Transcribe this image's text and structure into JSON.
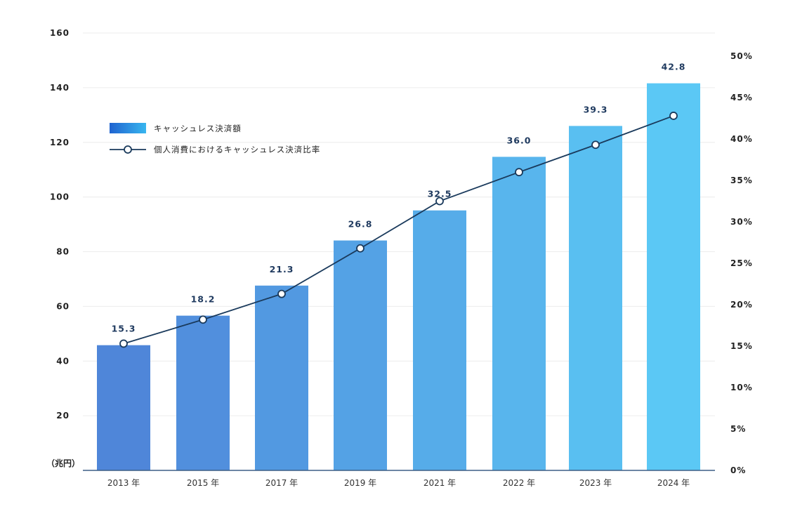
{
  "chart_data": {
    "type": "bar",
    "title": "",
    "categories": [
      "2013 年",
      "2015 年",
      "2017 年",
      "2019 年",
      "2021 年",
      "2022 年",
      "2023 年",
      "2024 年"
    ],
    "series": [
      {
        "name": "キャッシュレス決済額",
        "type": "bar",
        "axis": "left",
        "values": [
          45.8,
          56.6,
          67.6,
          84.1,
          95.1,
          114.7,
          126.0,
          141.6
        ]
      },
      {
        "name": "個人消費におけるキャッシュレス決済比率",
        "type": "line",
        "axis": "right",
        "values": [
          15.3,
          18.2,
          21.3,
          26.8,
          32.5,
          36.0,
          39.3,
          42.8
        ]
      }
    ],
    "data_labels": [
      "15.3",
      "18.2",
      "21.3",
      "26.8",
      "32.5",
      "36.0",
      "39.3",
      "42.8"
    ],
    "ylabel": "（兆円）",
    "ylim": [
      0,
      160
    ],
    "y_ticks": [
      20,
      40,
      60,
      80,
      100,
      120,
      140,
      160
    ],
    "y2lim": [
      0,
      50
    ],
    "y2_ticks": [
      "0%",
      "5%",
      "10%",
      "15%",
      "20%",
      "25%",
      "30%",
      "35%",
      "40%",
      "45%",
      "50%"
    ],
    "grid": true,
    "legend_position": "upper-left",
    "colors": {
      "bar_start": "#4f86d9",
      "bar_end": "#5bc8f5",
      "line": "#1a3a5c",
      "grid": "#ececec",
      "axis": "#3d5f85"
    }
  },
  "legend": [
    {
      "label": "キャッシュレス決済額",
      "icon": "gradient-bar-swatch"
    },
    {
      "label": "個人消費におけるキャッシュレス決済比率",
      "icon": "line-circle-marker"
    }
  ]
}
